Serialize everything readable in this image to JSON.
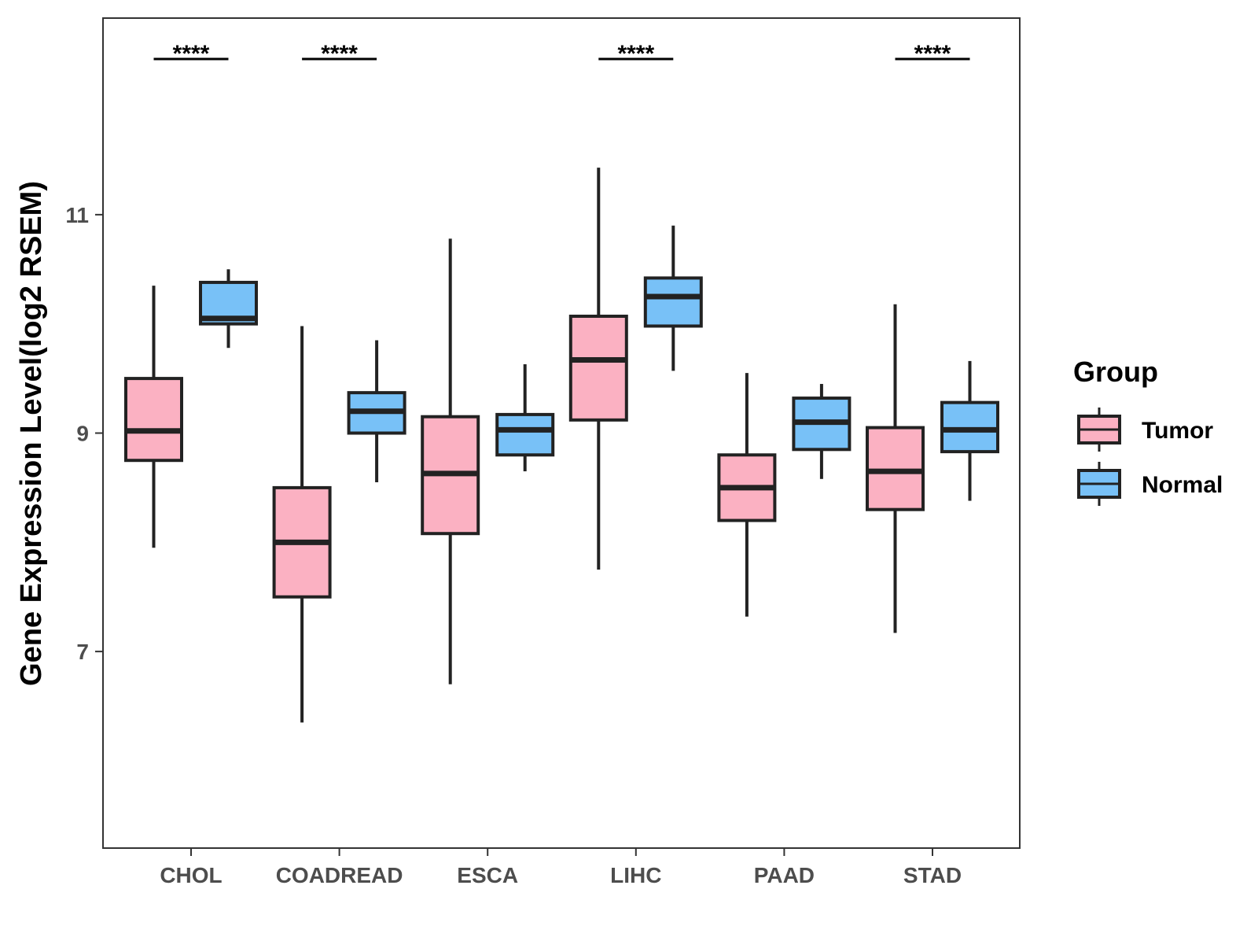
{
  "chart_data": {
    "type": "boxplot",
    "title": "",
    "xlabel": "",
    "ylabel": "Gene Expression Level(log2 RSEM)",
    "ylim": [
      5.2,
      12.8
    ],
    "yticks": [
      7,
      9,
      11
    ],
    "categories": [
      "CHOL",
      "COADREAD",
      "ESCA",
      "LIHC",
      "PAAD",
      "STAD"
    ],
    "legend": {
      "title": "Group",
      "position": "right",
      "entries": [
        {
          "name": "Tumor",
          "color": "#FBB1C2"
        },
        {
          "name": "Normal",
          "color": "#78C1F7"
        }
      ]
    },
    "series": [
      {
        "name": "Tumor",
        "color": "#FBB1C2",
        "boxes": [
          {
            "min": 7.95,
            "q1": 8.75,
            "median": 9.02,
            "q3": 9.5,
            "max": 10.35
          },
          {
            "min": 6.35,
            "q1": 7.5,
            "median": 8.0,
            "q3": 8.5,
            "max": 9.98
          },
          {
            "min": 6.7,
            "q1": 8.08,
            "median": 8.63,
            "q3": 9.15,
            "max": 10.78
          },
          {
            "min": 7.75,
            "q1": 9.12,
            "median": 9.67,
            "q3": 10.07,
            "max": 11.43
          },
          {
            "min": 7.32,
            "q1": 8.2,
            "median": 8.5,
            "q3": 8.8,
            "max": 9.55
          },
          {
            "min": 7.17,
            "q1": 8.3,
            "median": 8.65,
            "q3": 9.05,
            "max": 10.18
          }
        ]
      },
      {
        "name": "Normal",
        "color": "#78C1F7",
        "boxes": [
          {
            "min": 9.78,
            "q1": 10.0,
            "median": 10.05,
            "q3": 10.38,
            "max": 10.5
          },
          {
            "min": 8.55,
            "q1": 9.0,
            "median": 9.2,
            "q3": 9.37,
            "max": 9.85
          },
          {
            "min": 8.65,
            "q1": 8.8,
            "median": 9.03,
            "q3": 9.17,
            "max": 9.63
          },
          {
            "min": 9.57,
            "q1": 9.98,
            "median": 10.25,
            "q3": 10.42,
            "max": 10.9
          },
          {
            "min": 8.58,
            "q1": 8.85,
            "median": 9.1,
            "q3": 9.32,
            "max": 9.45
          },
          {
            "min": 8.38,
            "q1": 8.83,
            "median": 9.03,
            "q3": 9.28,
            "max": 9.66
          }
        ]
      }
    ],
    "annotations": [
      {
        "category": "CHOL",
        "label": "****"
      },
      {
        "category": "COADREAD",
        "label": "****"
      },
      {
        "category": "LIHC",
        "label": "****"
      },
      {
        "category": "STAD",
        "label": "****"
      }
    ]
  }
}
